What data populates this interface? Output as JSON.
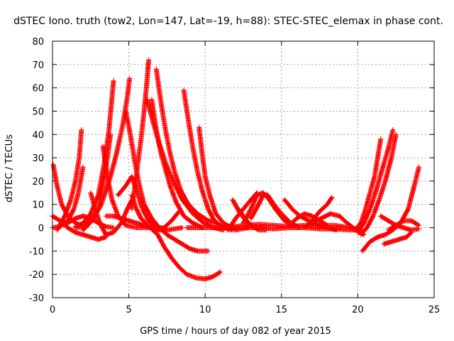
{
  "chart_data": {
    "type": "scatter",
    "title": "dSTEC Iono. truth (tow2, Lon=147, Lat=-19, h=88): STEC-STEC_elemax in phase cont.",
    "xlabel": "GPS time / hours of day 082 of year 2015",
    "ylabel": "dSTEC  / TECUs",
    "xlim": [
      0,
      25
    ],
    "ylim": [
      -30,
      80
    ],
    "xticks": [
      0,
      5,
      10,
      15,
      20,
      25
    ],
    "yticks": [
      -30,
      -20,
      -10,
      0,
      10,
      20,
      30,
      40,
      50,
      60,
      70,
      80
    ],
    "grid": true,
    "marker": "plus",
    "color": "#ff0000",
    "tracks": [
      [
        [
          0.05,
          27
        ],
        [
          0.3,
          18
        ],
        [
          0.6,
          10
        ],
        [
          1.0,
          5
        ],
        [
          1.5,
          2
        ],
        [
          2.0,
          0.5
        ]
      ],
      [
        [
          0.0,
          0
        ],
        [
          0.5,
          0.5
        ],
        [
          1.0,
          3
        ],
        [
          1.4,
          8
        ],
        [
          1.7,
          15
        ],
        [
          2.0,
          26
        ]
      ],
      [
        [
          0.3,
          -1
        ],
        [
          0.8,
          5
        ],
        [
          1.2,
          12
        ],
        [
          1.5,
          20
        ],
        [
          1.75,
          30
        ],
        [
          1.9,
          42
        ]
      ],
      [
        [
          0.0,
          5
        ],
        [
          0.5,
          3
        ],
        [
          1.0,
          0
        ],
        [
          1.5,
          -2
        ],
        [
          2.0,
          -3
        ],
        [
          2.5,
          -4
        ],
        [
          3.0,
          -5
        ],
        [
          3.5,
          -4
        ]
      ],
      [
        [
          0.5,
          1
        ],
        [
          1.0,
          2
        ],
        [
          1.5,
          4
        ],
        [
          2.0,
          5
        ],
        [
          2.5,
          4
        ],
        [
          3.0,
          2
        ],
        [
          3.5,
          0.5
        ],
        [
          4.0,
          0
        ]
      ],
      [
        [
          1.5,
          0
        ],
        [
          2.0,
          0.5
        ],
        [
          2.5,
          3
        ],
        [
          3.0,
          8
        ],
        [
          3.3,
          18
        ],
        [
          3.6,
          30
        ],
        [
          3.8,
          40
        ]
      ],
      [
        [
          1.5,
          0.5
        ],
        [
          2.0,
          2
        ],
        [
          2.5,
          6
        ],
        [
          3.0,
          14
        ],
        [
          3.4,
          28
        ],
        [
          3.7,
          42
        ],
        [
          4.0,
          63
        ]
      ],
      [
        [
          2.0,
          -1
        ],
        [
          2.6,
          3
        ],
        [
          3.2,
          10
        ],
        [
          3.8,
          22
        ],
        [
          4.2,
          32
        ],
        [
          4.6,
          44
        ],
        [
          4.9,
          56
        ],
        [
          5.05,
          64
        ]
      ],
      [
        [
          2.5,
          15
        ],
        [
          2.8,
          8
        ],
        [
          3.1,
          2
        ],
        [
          3.5,
          -3
        ],
        [
          4.0,
          -2
        ],
        [
          4.5,
          2
        ],
        [
          4.9,
          8
        ],
        [
          5.2,
          12
        ]
      ],
      [
        [
          3.3,
          35
        ],
        [
          3.6,
          22
        ],
        [
          3.9,
          12
        ],
        [
          4.3,
          5
        ],
        [
          4.8,
          1
        ],
        [
          5.5,
          0
        ],
        [
          6.5,
          0
        ],
        [
          7.5,
          -1
        ],
        [
          8.5,
          0
        ]
      ],
      [
        [
          4.3,
          14
        ],
        [
          4.8,
          18
        ],
        [
          5.2,
          22
        ],
        [
          5.5,
          16
        ],
        [
          5.9,
          8
        ],
        [
          6.3,
          3
        ],
        [
          6.8,
          0
        ],
        [
          7.3,
          0
        ],
        [
          7.8,
          3
        ],
        [
          8.3,
          7
        ]
      ],
      [
        [
          3.5,
          5
        ],
        [
          4.0,
          5
        ],
        [
          4.5,
          4
        ],
        [
          5.0,
          3
        ],
        [
          5.5,
          2
        ],
        [
          6.0,
          1
        ],
        [
          6.5,
          0
        ],
        [
          7.0,
          -1
        ],
        [
          7.5,
          -1
        ]
      ],
      [
        [
          4.8,
          50
        ],
        [
          5.1,
          40
        ],
        [
          5.4,
          28
        ],
        [
          5.7,
          18
        ],
        [
          6.0,
          10
        ],
        [
          6.5,
          4
        ],
        [
          7.0,
          0
        ],
        [
          7.5,
          -3
        ],
        [
          8.0,
          -5
        ],
        [
          8.5,
          -7
        ],
        [
          9.0,
          -9
        ],
        [
          9.5,
          -10
        ],
        [
          10.2,
          -10
        ]
      ],
      [
        [
          5.2,
          14
        ],
        [
          5.5,
          8
        ],
        [
          5.8,
          4
        ],
        [
          6.1,
          2
        ],
        [
          6.4,
          0
        ],
        [
          6.9,
          -3
        ],
        [
          7.3,
          -8
        ],
        [
          7.8,
          -13
        ],
        [
          8.3,
          -17
        ],
        [
          8.8,
          -20
        ],
        [
          9.4,
          -21.5
        ],
        [
          10.0,
          -22
        ],
        [
          10.5,
          -21
        ],
        [
          11.0,
          -19
        ]
      ],
      [
        [
          5.2,
          8
        ],
        [
          5.4,
          18
        ],
        [
          5.6,
          28
        ],
        [
          5.8,
          38
        ],
        [
          6.0,
          50
        ],
        [
          6.15,
          60
        ],
        [
          6.25,
          68
        ],
        [
          6.3,
          72
        ]
      ],
      [
        [
          6.5,
          55
        ],
        [
          6.8,
          42
        ],
        [
          7.1,
          32
        ],
        [
          7.4,
          25
        ],
        [
          7.7,
          18
        ],
        [
          8.1,
          11
        ],
        [
          8.6,
          5
        ],
        [
          9.2,
          2
        ],
        [
          9.8,
          0
        ]
      ],
      [
        [
          6.8,
          68
        ],
        [
          7.1,
          54
        ],
        [
          7.4,
          42
        ],
        [
          7.7,
          32
        ],
        [
          8.0,
          24
        ],
        [
          8.4,
          16
        ],
        [
          8.9,
          10
        ],
        [
          9.5,
          6
        ],
        [
          10.2,
          3
        ],
        [
          10.8,
          2
        ]
      ],
      [
        [
          6.2,
          55
        ],
        [
          6.6,
          45
        ],
        [
          7.0,
          36
        ],
        [
          7.4,
          28
        ],
        [
          7.9,
          20
        ],
        [
          8.5,
          12
        ],
        [
          9.2,
          6
        ],
        [
          9.9,
          2
        ],
        [
          10.6,
          0
        ],
        [
          11.2,
          -1
        ]
      ],
      [
        [
          8.6,
          59
        ],
        [
          8.9,
          46
        ],
        [
          9.2,
          34
        ],
        [
          9.5,
          24
        ],
        [
          9.8,
          16
        ],
        [
          10.2,
          8
        ],
        [
          10.6,
          3
        ],
        [
          11.2,
          0
        ],
        [
          11.8,
          -1
        ]
      ],
      [
        [
          9.6,
          43
        ],
        [
          9.8,
          32
        ],
        [
          10.0,
          22
        ],
        [
          10.3,
          14
        ],
        [
          10.7,
          6
        ],
        [
          11.2,
          2
        ],
        [
          12.0,
          -1
        ],
        [
          12.8,
          0
        ]
      ],
      [
        [
          8.8,
          0
        ],
        [
          9.5,
          0
        ],
        [
          10.5,
          0
        ],
        [
          11.5,
          0
        ],
        [
          12.5,
          0
        ],
        [
          13.5,
          0
        ],
        [
          14.5,
          -0.5
        ],
        [
          15.5,
          0
        ],
        [
          16.5,
          0
        ],
        [
          17.5,
          -0.5
        ],
        [
          18.5,
          -0.5
        ],
        [
          19.5,
          -1
        ],
        [
          20.2,
          -1
        ]
      ],
      [
        [
          11.5,
          0
        ],
        [
          12.5,
          1
        ],
        [
          13.5,
          1.5
        ],
        [
          14.5,
          1
        ],
        [
          15.5,
          0.5
        ],
        [
          16.5,
          1
        ],
        [
          17.5,
          1
        ],
        [
          18.5,
          1
        ],
        [
          19.5,
          0
        ],
        [
          20.3,
          -1.5
        ]
      ],
      [
        [
          12.2,
          8
        ],
        [
          12.6,
          4
        ],
        [
          13.0,
          1
        ],
        [
          13.5,
          -1
        ],
        [
          14.0,
          -1
        ]
      ],
      [
        [
          11.5,
          -1
        ],
        [
          12.0,
          4
        ],
        [
          12.5,
          8
        ],
        [
          13.0,
          12
        ],
        [
          13.4,
          15
        ]
      ],
      [
        [
          11.8,
          12
        ],
        [
          12.3,
          6
        ],
        [
          12.8,
          2
        ],
        [
          13.3,
          0
        ],
        [
          13.8,
          0
        ]
      ],
      [
        [
          12.5,
          2
        ],
        [
          13.0,
          8
        ],
        [
          13.4,
          14
        ],
        [
          13.8,
          15
        ],
        [
          14.2,
          12
        ],
        [
          14.6,
          8
        ],
        [
          15.2,
          3
        ],
        [
          15.8,
          1
        ]
      ],
      [
        [
          13.0,
          4
        ],
        [
          13.5,
          10
        ],
        [
          13.8,
          14
        ],
        [
          14.1,
          14
        ],
        [
          14.5,
          10
        ],
        [
          15.0,
          6
        ],
        [
          15.6,
          2
        ],
        [
          16.2,
          0
        ]
      ],
      [
        [
          15.2,
          12
        ],
        [
          15.7,
          8
        ],
        [
          16.2,
          5
        ],
        [
          16.8,
          3
        ],
        [
          17.4,
          1
        ],
        [
          18.0,
          0
        ],
        [
          18.6,
          -1
        ]
      ],
      [
        [
          15.5,
          1
        ],
        [
          16.0,
          4
        ],
        [
          16.5,
          6
        ],
        [
          17.0,
          5
        ],
        [
          17.5,
          3
        ],
        [
          18.0,
          1
        ]
      ],
      [
        [
          16.5,
          0
        ],
        [
          17.0,
          3
        ],
        [
          17.5,
          7
        ],
        [
          18.0,
          10
        ],
        [
          18.3,
          13
        ]
      ],
      [
        [
          17.0,
          2
        ],
        [
          17.6,
          4
        ],
        [
          18.2,
          6
        ],
        [
          18.8,
          5
        ],
        [
          19.3,
          2
        ],
        [
          19.9,
          -1
        ],
        [
          20.4,
          -3
        ]
      ],
      [
        [
          19.8,
          -1
        ],
        [
          20.2,
          2
        ],
        [
          20.5,
          8
        ],
        [
          20.8,
          15
        ],
        [
          21.1,
          22
        ],
        [
          21.3,
          30
        ],
        [
          21.5,
          38
        ]
      ],
      [
        [
          20.0,
          -2
        ],
        [
          20.4,
          2
        ],
        [
          20.8,
          8
        ],
        [
          21.2,
          16
        ],
        [
          21.6,
          25
        ],
        [
          22.0,
          34
        ],
        [
          22.3,
          42
        ]
      ],
      [
        [
          20.2,
          -3
        ],
        [
          20.6,
          0
        ],
        [
          21.0,
          5
        ],
        [
          21.4,
          12
        ],
        [
          21.8,
          20
        ],
        [
          22.2,
          30
        ],
        [
          22.5,
          40
        ]
      ],
      [
        [
          20.3,
          -10
        ],
        [
          20.8,
          -6
        ],
        [
          21.3,
          -4
        ],
        [
          21.8,
          -3
        ],
        [
          22.3,
          -1
        ],
        [
          22.8,
          2
        ],
        [
          23.3,
          8
        ],
        [
          23.7,
          18
        ],
        [
          24.0,
          26
        ]
      ],
      [
        [
          21.5,
          5
        ],
        [
          22.0,
          3
        ],
        [
          22.5,
          1
        ],
        [
          23.0,
          0
        ],
        [
          23.5,
          -1
        ],
        [
          24.0,
          -0.5
        ]
      ],
      [
        [
          21.7,
          -7
        ],
        [
          22.2,
          -6
        ],
        [
          22.7,
          -5
        ],
        [
          23.2,
          -4
        ],
        [
          23.5,
          -2
        ]
      ],
      [
        [
          22.0,
          -1
        ],
        [
          22.5,
          1
        ],
        [
          23.0,
          3
        ],
        [
          23.5,
          3
        ],
        [
          24.0,
          1
        ]
      ]
    ]
  }
}
